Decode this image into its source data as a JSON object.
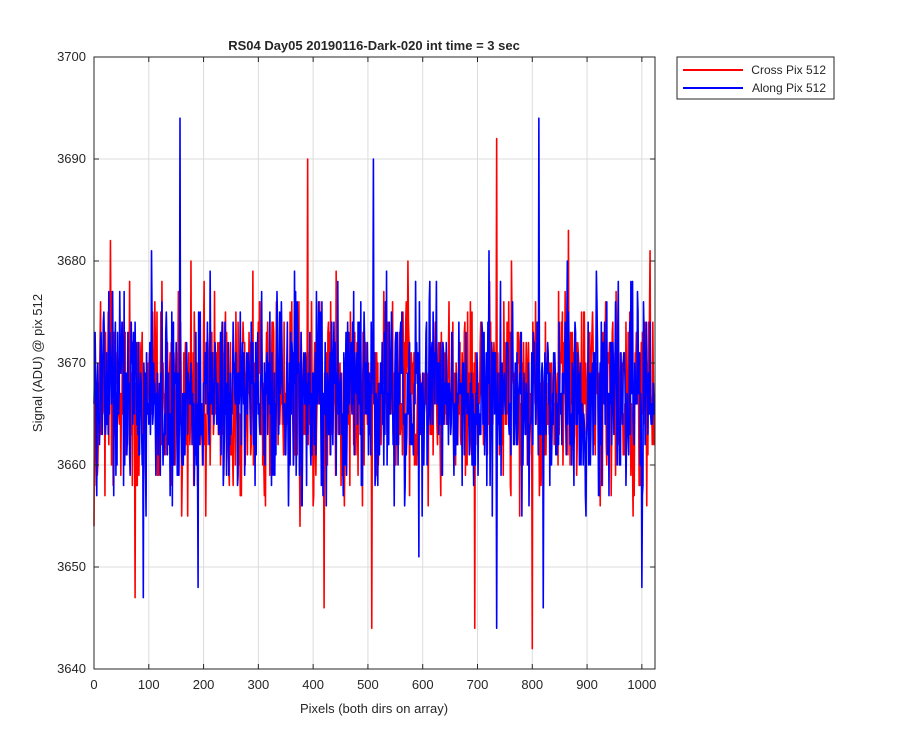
{
  "chart_data": {
    "type": "line",
    "title": "RS04 Day05 20190116-Dark-020 int time = 3 sec",
    "xlabel": "Pixels (both dirs on array)",
    "ylabel": "Signal (ADU) @ pix 512",
    "xlim": [
      0,
      1024
    ],
    "ylim": [
      3640,
      3700
    ],
    "xticks": [
      0,
      100,
      200,
      300,
      400,
      500,
      600,
      700,
      800,
      900,
      1000
    ],
    "yticks": [
      3640,
      3650,
      3660,
      3670,
      3680,
      3690,
      3700
    ],
    "grid": true,
    "legend_position": "outside-top-right",
    "noise": {
      "mean": 3667,
      "sigma": 6,
      "samples_per_series": 1024
    },
    "series": [
      {
        "name": "Cross Pix 512",
        "color": "#ff0000",
        "seed": 13,
        "peaks": [
          [
            390,
            3690
          ],
          [
            735,
            3692
          ],
          [
            507,
            3644
          ],
          [
            420,
            3646
          ],
          [
            695,
            3644
          ],
          [
            800,
            3642
          ],
          [
            75,
            3647
          ],
          [
            30,
            3682
          ]
        ]
      },
      {
        "name": "Along Pix 512",
        "color": "#0000ff",
        "seed": 71,
        "peaks": [
          [
            157,
            3694
          ],
          [
            812,
            3694
          ],
          [
            510,
            3690
          ],
          [
            90,
            3647
          ],
          [
            735,
            3644
          ],
          [
            820,
            3646
          ],
          [
            190,
            3648
          ],
          [
            1000,
            3648
          ]
        ]
      }
    ]
  }
}
